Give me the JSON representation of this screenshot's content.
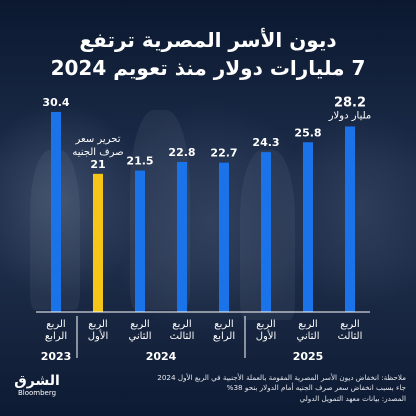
{
  "header": {
    "title_line1": "ديون الأسر المصرية ترتفع",
    "title_line2": "7 مليارات دولار منذ تعويم 2024"
  },
  "chart_data": {
    "type": "bar",
    "unit_label": "مليار دولار",
    "categories": [
      [
        "الربع",
        "الرابع"
      ],
      [
        "الربع",
        "الأول"
      ],
      [
        "الربع",
        "الثاني"
      ],
      [
        "الربع",
        "الثالث"
      ],
      [
        "الربع",
        "الرابع"
      ],
      [
        "الربع",
        "الأول"
      ],
      [
        "الربع",
        "الثاني"
      ],
      [
        "الربع",
        "الثالث"
      ]
    ],
    "values": [
      30.4,
      21,
      21.5,
      22.8,
      22.7,
      24.3,
      25.8,
      28.2
    ],
    "value_labels": [
      "30.4",
      "21",
      "21.5",
      "22.8",
      "22.7",
      "24.3",
      "25.8",
      "28.2"
    ],
    "highlight_index": 1,
    "annotation": [
      "تحرير سعر",
      "صرف الجنيه"
    ],
    "years": [
      {
        "label": "2023",
        "start": 0,
        "end": 0
      },
      {
        "label": "2024",
        "start": 1,
        "end": 4
      },
      {
        "label": "2025",
        "start": 5,
        "end": 7
      }
    ],
    "colors": {
      "bar": "#1a73e8",
      "highlight": "#f5c518",
      "annotation": "#f5c518"
    }
  },
  "footer": {
    "note_line1": "ملاحظة: انخفاض ديون الأسر المصرية المقومة بالعملة الأجنبية في الربع الأول 2024",
    "note_line2": "جاء بسبب انخفاض سعر صرف الجنيه أمام الدولار بنحو 38%",
    "source": "المصدر: بيانات معهد التمويل الدولي",
    "logo_main": "الشرق",
    "logo_sub": "Bloomberg"
  }
}
